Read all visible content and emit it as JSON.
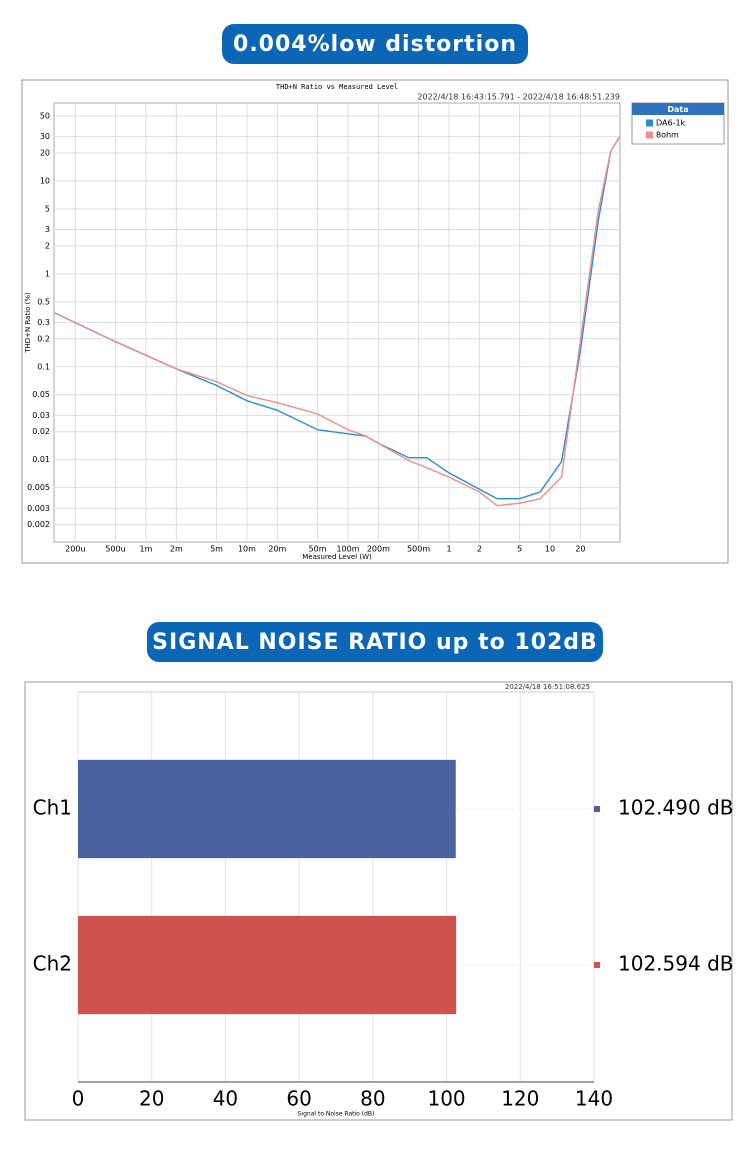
{
  "chart_data": [
    {
      "type": "line",
      "heading": "0.004%low distortion",
      "title": "THD+N Ratio vs Measured Level",
      "subtitle": "2022/4/18 16:43:15.791 -  2022/4/18 16:48:51.239",
      "xlabel": "Measured Level (W)",
      "ylabel": "THD+N Ratio (%)",
      "xscale": "log",
      "yscale": "log",
      "grid": true,
      "legend_title": "Data",
      "legend": "upper right",
      "x": [
        0.000125,
        0.0005,
        0.002,
        0.005,
        0.01,
        0.02,
        0.05,
        0.1,
        0.15,
        0.2,
        0.4,
        0.6,
        1,
        2,
        3,
        5,
        8,
        13,
        20,
        30,
        40,
        49
      ],
      "series": [
        {
          "name": "DA6-1k",
          "color": "#2a8fd0",
          "values": [
            0.38,
            0.186,
            0.095,
            0.063,
            0.043,
            0.034,
            0.021,
            0.019,
            0.018,
            0.015,
            0.0105,
            0.0105,
            0.0072,
            0.0048,
            0.0038,
            0.0038,
            0.0045,
            0.0095,
            0.15,
            3.7,
            21,
            30
          ]
        },
        {
          "name": "8ohm",
          "color": "#f08c8c",
          "values": [
            0.38,
            0.186,
            0.095,
            0.069,
            0.049,
            0.041,
            0.031,
            0.021,
            0.018,
            0.015,
            0.0098,
            0.0082,
            0.0065,
            0.0045,
            0.0032,
            0.0034,
            0.0038,
            0.0065,
            0.19,
            4.7,
            21,
            30
          ]
        }
      ],
      "xlim": [
        0.000123,
        49.3
      ],
      "ylim": [
        0.0013,
        69
      ],
      "xticks": [
        {
          "value": 0.0002,
          "label": "200u"
        },
        {
          "value": 0.0005,
          "label": "500u"
        },
        {
          "value": 0.001,
          "label": "1m"
        },
        {
          "value": 0.002,
          "label": "2m"
        },
        {
          "value": 0.005,
          "label": "5m"
        },
        {
          "value": 0.01,
          "label": "10m"
        },
        {
          "value": 0.02,
          "label": "20m"
        },
        {
          "value": 0.05,
          "label": "50m"
        },
        {
          "value": 0.1,
          "label": "100m"
        },
        {
          "value": 0.2,
          "label": "200m"
        },
        {
          "value": 0.5,
          "label": "500m"
        },
        1,
        2,
        5,
        10,
        20
      ],
      "yticks": [
        50,
        30,
        20,
        10,
        5,
        3,
        2,
        1,
        0.5,
        0.3,
        0.2,
        0.1,
        0.05,
        0.03,
        0.02,
        0.01,
        0.005,
        0.003,
        0.002
      ]
    },
    {
      "type": "bar",
      "orientation": "horizontal",
      "heading": "SIGNAL NOISE RATIO up to 102dB",
      "subtitle": "2022/4/18 16:51:08.625",
      "xlabel": "Signal to Noise Ratio (dB)",
      "grid": true,
      "categories": [
        "Ch1",
        "Ch2"
      ],
      "values": [
        102.49,
        102.594
      ],
      "value_labels": [
        "102.490 dB",
        "102.594 dB"
      ],
      "colors": [
        "#4a63a0",
        "#d0524f"
      ],
      "xlim": [
        0,
        140
      ],
      "xticks": [
        0,
        20,
        40,
        60,
        80,
        100,
        120,
        140
      ]
    }
  ]
}
